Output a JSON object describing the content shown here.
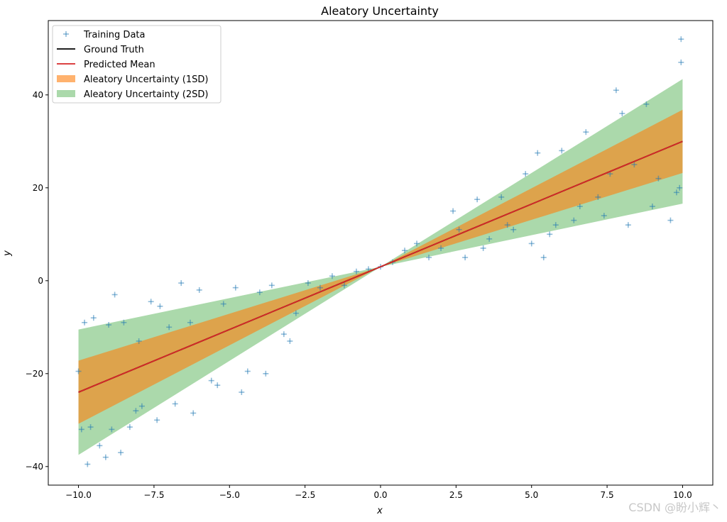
{
  "chart_data": {
    "type": "scatter",
    "title": "Aleatory Uncertainty",
    "xlabel": "x",
    "ylabel": "y",
    "xlim": [
      -11.0,
      11.0
    ],
    "ylim": [
      -44.0,
      56.0
    ],
    "x_ticks": [
      -10.0,
      -7.5,
      -5.0,
      -2.5,
      0.0,
      2.5,
      5.0,
      7.5,
      10.0
    ],
    "x_tick_labels": [
      "−10.0",
      "−7.5",
      "−5.0",
      "−2.5",
      "0.0",
      "2.5",
      "5.0",
      "7.5",
      "10.0"
    ],
    "y_ticks": [
      -40,
      -20,
      0,
      20,
      40
    ],
    "y_tick_labels": [
      "−40",
      "−20",
      "0",
      "20",
      "40"
    ],
    "grid": false,
    "legend_position": "top-left",
    "series": [
      {
        "name": "Training Data",
        "kind": "scatter",
        "marker": "+",
        "color": "#1f77b4",
        "alpha": 0.5,
        "x": [
          -10.0,
          -9.8,
          -9.5,
          -9.3,
          -9.0,
          -8.8,
          -8.5,
          -8.3,
          -8.0,
          -7.6,
          -7.3,
          -7.0,
          -6.6,
          -6.3,
          -6.0,
          -5.6,
          -5.2,
          -4.8,
          -4.4,
          -4.0,
          -3.6,
          -3.2,
          -2.8,
          -2.4,
          -2.0,
          -1.6,
          -1.2,
          -0.8,
          -0.4,
          0.0,
          0.4,
          0.8,
          1.2,
          1.6,
          2.0,
          2.4,
          2.8,
          3.2,
          3.6,
          4.0,
          4.4,
          4.8,
          5.2,
          5.6,
          6.0,
          6.4,
          6.8,
          7.2,
          7.6,
          8.0,
          8.4,
          8.8,
          9.2,
          9.6,
          9.9,
          -9.9,
          -9.6,
          -9.1,
          -8.6,
          -8.1,
          -7.4,
          -6.8,
          -6.2,
          -5.4,
          -4.6,
          -3.8,
          -3.0,
          2.6,
          3.4,
          4.2,
          5.0,
          5.8,
          6.6,
          7.4,
          8.2,
          9.0,
          9.8,
          -9.7,
          -8.9,
          -7.9,
          5.4,
          7.8,
          9.95,
          9.95
        ],
        "y": [
          -19.5,
          -9.0,
          -8.0,
          -35.5,
          -9.5,
          -3.0,
          -9.0,
          -31.5,
          -13.0,
          -4.5,
          -5.5,
          -10.0,
          -0.5,
          -9.0,
          -2.0,
          -21.5,
          -5.0,
          -1.5,
          -19.5,
          -2.5,
          -1.0,
          -11.5,
          -7.0,
          -0.5,
          -1.5,
          1.0,
          -1.0,
          2.0,
          2.5,
          3.0,
          4.0,
          6.5,
          8.0,
          5.0,
          7.0,
          15.0,
          5.0,
          17.5,
          9.0,
          18.0,
          11.0,
          23.0,
          27.5,
          10.0,
          28.0,
          13.0,
          32.0,
          18.0,
          23.0,
          36.0,
          25.0,
          38.0,
          22.0,
          13.0,
          20.0,
          -32.0,
          -31.5,
          -38.0,
          -37.0,
          -28.0,
          -30.0,
          -26.5,
          -28.5,
          -22.5,
          -24.0,
          -20.0,
          -13.0,
          11.0,
          7.0,
          12.0,
          8.0,
          12.0,
          16.0,
          14.0,
          12.0,
          16.0,
          19.0,
          -39.5,
          -32.0,
          -27.0,
          5.0,
          41.0,
          52.0,
          47.0
        ]
      },
      {
        "name": "Ground Truth",
        "kind": "line",
        "color": "#000000",
        "x": [
          -10.0,
          10.0
        ],
        "y": [
          -24.0,
          30.0
        ]
      },
      {
        "name": "Predicted Mean",
        "kind": "line",
        "color": "#d62728",
        "x": [
          -10.0,
          10.0
        ],
        "y": [
          -24.0,
          30.0
        ]
      },
      {
        "name": "Aleatory Uncertainty (1SD)",
        "kind": "band",
        "color": "#ff7f0e",
        "alpha": 0.6,
        "x": [
          -10.0,
          0.0,
          10.0
        ],
        "lower": [
          -30.8,
          3.0,
          23.2
        ],
        "upper": [
          -17.2,
          3.0,
          36.8
        ]
      },
      {
        "name": "Aleatory Uncertainty (2SD)",
        "kind": "band",
        "color": "#2ca02c",
        "alpha": 0.4,
        "x": [
          -10.0,
          0.0,
          10.0
        ],
        "lower": [
          -37.5,
          3.0,
          16.6
        ],
        "upper": [
          -10.5,
          3.0,
          43.4
        ]
      }
    ]
  },
  "watermark": {
    "text": "CSDN @盼小辉丶"
  }
}
